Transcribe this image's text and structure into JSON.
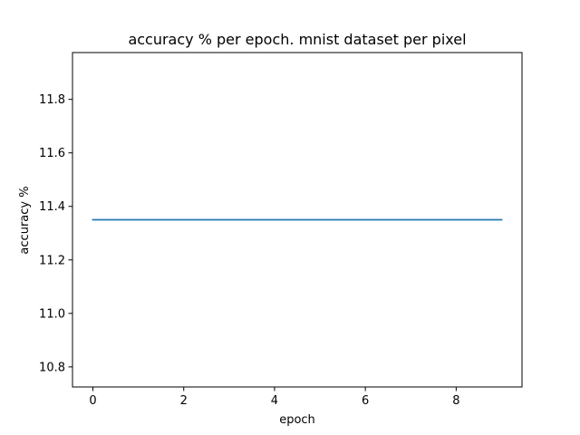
{
  "chart_data": {
    "type": "line",
    "title": "accuracy % per epoch. mnist dataset per pixel",
    "xlabel": "epoch",
    "ylabel": "accuracy %",
    "xlim": [
      -0.45,
      9.45
    ],
    "ylim": [
      10.725,
      11.975
    ],
    "xticks": [
      0,
      2,
      4,
      6,
      8
    ],
    "xtick_labels": [
      "0",
      "2",
      "4",
      "6",
      "8"
    ],
    "yticks": [
      10.8,
      11.0,
      11.2,
      11.4,
      11.6,
      11.8
    ],
    "ytick_labels": [
      "10.8",
      "11.0",
      "11.2",
      "11.4",
      "11.6",
      "11.8"
    ],
    "grid": false,
    "series": [
      {
        "color": "#1f77b4",
        "x": [
          0,
          1,
          2,
          3,
          4,
          5,
          6,
          7,
          8,
          9
        ],
        "y": [
          11.35,
          11.35,
          11.35,
          11.35,
          11.35,
          11.35,
          11.35,
          11.35,
          11.35,
          11.35
        ]
      }
    ]
  }
}
